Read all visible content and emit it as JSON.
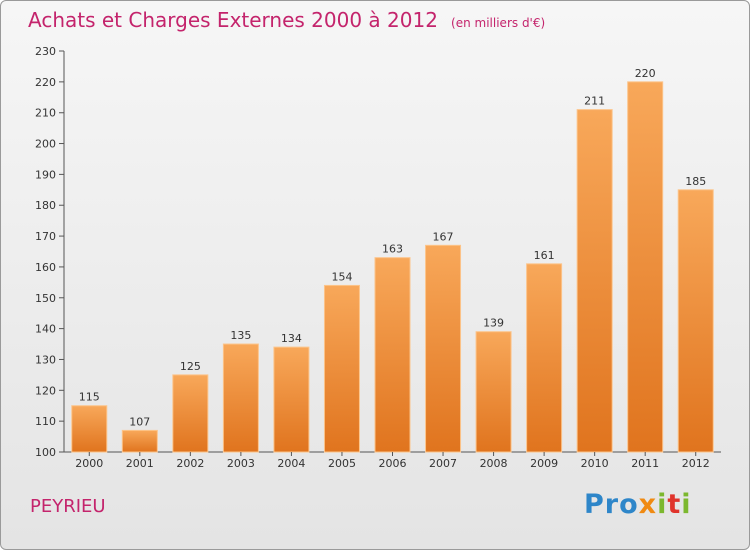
{
  "header": {
    "title": "Achats et Charges Externes 2000 à 2012",
    "unit": "(en milliers d'€)"
  },
  "footer": {
    "town": "PEYRIEU",
    "logo_parts": [
      "Pro",
      "x",
      "i",
      "t",
      "i"
    ]
  },
  "colors": {
    "title": "#c4246c",
    "bar_top": "#f8a85a",
    "bar_bottom": "#e0741e"
  },
  "chart_data": {
    "type": "bar",
    "title": "Achats et Charges Externes 2000 à 2012",
    "xlabel": "",
    "ylabel": "",
    "categories": [
      "2000",
      "2001",
      "2002",
      "2003",
      "2004",
      "2005",
      "2006",
      "2007",
      "2008",
      "2009",
      "2010",
      "2011",
      "2012"
    ],
    "values": [
      115,
      107,
      125,
      135,
      134,
      154,
      163,
      167,
      139,
      161,
      211,
      220,
      185
    ],
    "ylim": [
      100,
      230
    ],
    "yticks": [
      100,
      110,
      120,
      130,
      140,
      150,
      160,
      170,
      180,
      190,
      200,
      210,
      220,
      230
    ],
    "grid": false,
    "legend": "none"
  }
}
